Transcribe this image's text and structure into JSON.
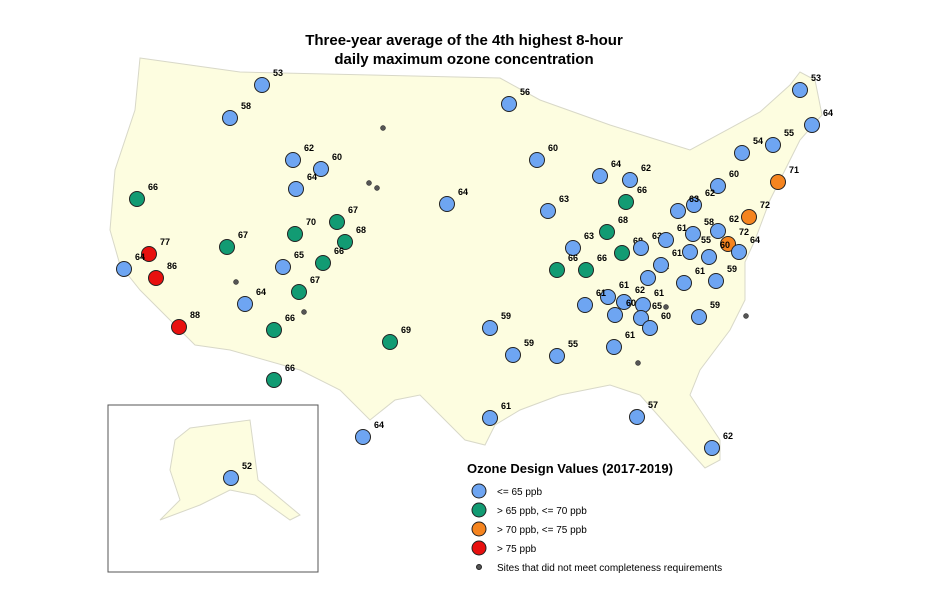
{
  "title": [
    "Three-year average of the 4th highest 8-hour",
    "daily maximum ozone concentration"
  ],
  "legend": {
    "title": "Ozone Design Values (2017-2019)",
    "items": [
      {
        "label": "<= 65 ppb",
        "color": "#6ea5f2"
      },
      {
        "label": ">  65 ppb, <= 70 ppb",
        "color": "#129b73"
      },
      {
        "label": "> 70 ppb, <= 75 ppb",
        "color": "#f5841f"
      },
      {
        "label": "> 75 ppb",
        "color": "#e8100f"
      },
      {
        "label": "Sites that did not meet completeness requirements",
        "color": "#555555"
      }
    ]
  },
  "sites": [
    {
      "value": 53,
      "color": "#6ea5f2"
    },
    {
      "value": 58,
      "color": "#6ea5f2"
    },
    {
      "value": 62,
      "color": "#6ea5f2"
    },
    {
      "value": 60,
      "color": "#6ea5f2"
    },
    {
      "value": 64,
      "color": "#6ea5f2"
    },
    {
      "value": 66,
      "color": "#129b73"
    },
    {
      "value": 67,
      "color": "#129b73"
    },
    {
      "value": 70,
      "color": "#129b73"
    },
    {
      "value": 67,
      "color": "#129b73"
    },
    {
      "value": 68,
      "color": "#129b73"
    },
    {
      "value": 66,
      "color": "#129b73"
    },
    {
      "value": 65,
      "color": "#6ea5f2"
    },
    {
      "value": 67,
      "color": "#129b73"
    },
    {
      "value": 64,
      "color": "#6ea5f2"
    },
    {
      "value": 66,
      "color": "#129b73"
    },
    {
      "value": 66,
      "color": "#129b73"
    },
    {
      "value": 77,
      "color": "#e8100f"
    },
    {
      "value": 64,
      "color": "#6ea5f2"
    },
    {
      "value": 86,
      "color": "#e8100f"
    },
    {
      "value": 88,
      "color": "#e8100f"
    },
    {
      "value": 69,
      "color": "#129b73"
    },
    {
      "value": 64,
      "color": "#6ea5f2"
    },
    {
      "value": 56,
      "color": "#6ea5f2"
    },
    {
      "value": 60,
      "color": "#6ea5f2"
    },
    {
      "value": 63,
      "color": "#6ea5f2"
    },
    {
      "value": 64,
      "color": "#6ea5f2"
    },
    {
      "value": 62,
      "color": "#6ea5f2"
    },
    {
      "value": 66,
      "color": "#129b73"
    },
    {
      "value": 68,
      "color": "#129b73"
    },
    {
      "value": 63,
      "color": "#6ea5f2"
    },
    {
      "value": 66,
      "color": "#129b73"
    },
    {
      "value": 66,
      "color": "#129b73"
    },
    {
      "value": 68,
      "color": "#129b73"
    },
    {
      "value": 63,
      "color": "#6ea5f2"
    },
    {
      "value": 54,
      "color": "#6ea5f2"
    },
    {
      "value": 55,
      "color": "#6ea5f2"
    },
    {
      "value": 53,
      "color": "#6ea5f2"
    },
    {
      "value": 64,
      "color": "#6ea5f2"
    },
    {
      "value": 71,
      "color": "#f5841f"
    },
    {
      "value": 72,
      "color": "#f5841f"
    },
    {
      "value": 72,
      "color": "#f5841f"
    },
    {
      "value": 60,
      "color": "#6ea5f2"
    },
    {
      "value": 62,
      "color": "#6ea5f2"
    },
    {
      "value": 63,
      "color": "#6ea5f2"
    },
    {
      "value": 62,
      "color": "#6ea5f2"
    },
    {
      "value": 61,
      "color": "#6ea5f2"
    },
    {
      "value": 58,
      "color": "#6ea5f2"
    },
    {
      "value": 55,
      "color": "#6ea5f2"
    },
    {
      "value": 60,
      "color": "#6ea5f2"
    },
    {
      "value": 64,
      "color": "#6ea5f2"
    },
    {
      "value": 59,
      "color": "#6ea5f2"
    },
    {
      "value": 61,
      "color": "#6ea5f2"
    },
    {
      "value": 62,
      "color": "#6ea5f2"
    },
    {
      "value": 61,
      "color": "#6ea5f2"
    },
    {
      "value": 61,
      "color": "#6ea5f2"
    },
    {
      "value": 62,
      "color": "#6ea5f2"
    },
    {
      "value": 61,
      "color": "#6ea5f2"
    },
    {
      "value": 60,
      "color": "#6ea5f2"
    },
    {
      "value": 61,
      "color": "#6ea5f2"
    },
    {
      "value": 65,
      "color": "#6ea5f2"
    },
    {
      "value": 60,
      "color": "#6ea5f2"
    },
    {
      "value": 59,
      "color": "#6ea5f2"
    },
    {
      "value": 61,
      "color": "#6ea5f2"
    },
    {
      "value": 59,
      "color": "#6ea5f2"
    },
    {
      "value": 59,
      "color": "#6ea5f2"
    },
    {
      "value": 55,
      "color": "#6ea5f2"
    },
    {
      "value": 61,
      "color": "#6ea5f2"
    },
    {
      "value": 64,
      "color": "#6ea5f2"
    },
    {
      "value": 57,
      "color": "#6ea5f2"
    },
    {
      "value": 62,
      "color": "#6ea5f2"
    },
    {
      "value": 52,
      "color": "#6ea5f2"
    }
  ]
}
